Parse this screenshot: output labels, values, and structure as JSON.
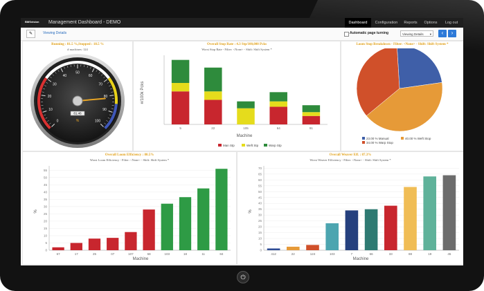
{
  "navbar": {
    "brand": "BMSvision",
    "title": "Management Dashboard - DEMO",
    "tabs": [
      "Dashboard",
      "Configuration",
      "Reports",
      "Options",
      "Log out"
    ],
    "active_tab": "Dashboard"
  },
  "toolbar": {
    "viewing_details_link": "Viewing Details",
    "auto_page_label": "Automatic page turning",
    "viewing_select": "Viewing Details",
    "prev": "‹",
    "next": "›"
  },
  "gauge_panel": {
    "title": "Running : 81.5 %,Stopped : 18.5 %",
    "machines": "# machines: 124",
    "ticks": [
      "0",
      "10",
      "20",
      "30",
      "40",
      "50",
      "60",
      "70",
      "80",
      "90",
      "100"
    ],
    "unit": "%",
    "value_label": "81.46"
  },
  "stop_rate_panel": {
    "title": "Overall Stop Rate : 4.3 Stp/100,000 Pcks",
    "subtitle": "Worst Stop Rate  -  Filter: <None> - Shift: Shift System *",
    "ylabel": "#/100k Pcks",
    "xlabel": "Machine",
    "legend": [
      "Man Stp",
      "Weft Stp",
      "Warp Stp"
    ]
  },
  "pie_panel": {
    "title": "Loom Stop Breakdown  -  Filter: <None> - Shift: Shift System *",
    "legend": [
      "23.00 % Manual",
      "40.00 % Weft Stop",
      "34.00 % Warp Stop"
    ]
  },
  "loom_eff_panel": {
    "title": "Overall Loom Efficiency : 80.5%",
    "subtitle": "Worst Loom Efficiency  -  Filter: <None> - Shift: Shift System *",
    "ylabel": "%",
    "xlabel": "Machine"
  },
  "weaver_eff_panel": {
    "title": "Overall Weaver Eff. : 87.3%",
    "subtitle": "Worst Weaver Efficiency  -  Filter: <None> - Shift: Shift System *",
    "ylabel": "%",
    "xlabel": "Machine"
  },
  "chart_data": [
    {
      "type": "gauge",
      "title": "Running : 81.5 %,Stopped : 18.5 %",
      "value": 81.46,
      "min": 0,
      "max": 100,
      "bands": [
        {
          "from": 0,
          "to": 30,
          "color": "#d93131"
        },
        {
          "from": 30,
          "to": 70,
          "color": "#ffffff"
        },
        {
          "from": 70,
          "to": 85,
          "color": "#e9d21a"
        },
        {
          "from": 85,
          "to": 100,
          "color": "#3f57b8"
        }
      ]
    },
    {
      "type": "bar",
      "stacked": true,
      "title": "Overall Stop Rate : 4.3 Stp/100,000 Pcks",
      "categories": [
        "5",
        "22",
        "105",
        "64",
        "91"
      ],
      "series": [
        {
          "name": "Man Stp",
          "color": "#c8262e",
          "values": [
            4.3,
            3.2,
            0,
            2.3,
            1.1
          ]
        },
        {
          "name": "Weft Stp",
          "color": "#e5dc1c",
          "values": [
            1.1,
            1.1,
            2.1,
            0.7,
            0.5
          ]
        },
        {
          "name": "Warp Stp",
          "color": "#2e8b3c",
          "values": [
            3.0,
            3.1,
            0.9,
            1.2,
            0.9
          ]
        }
      ],
      "xlabel": "Machine",
      "ylabel": "#/100k Pcks",
      "ylim": [
        0,
        9
      ],
      "legend_position": "bottom"
    },
    {
      "type": "pie",
      "title": "Loom Stop Breakdown  -  Filter: <None> - Shift: Shift System *",
      "slices": [
        {
          "label": "23.00 % Manual",
          "value": 23,
          "color": "#3f5fa8"
        },
        {
          "label": "40.00 % Weft Stop",
          "value": 40,
          "color": "#e69a38"
        },
        {
          "label": "34.00 % Warp Stop",
          "value": 34,
          "color": "#d0502a"
        }
      ],
      "legend_position": "bottom"
    },
    {
      "type": "bar",
      "title": "Overall Loom Efficiency : 80.5%",
      "categories": [
        "67",
        "17",
        "25",
        "07",
        "107",
        "68",
        "103",
        "18",
        "11",
        "84"
      ],
      "values": [
        2,
        5,
        8,
        8.5,
        12.5,
        28,
        32,
        36.5,
        42.5,
        56
      ],
      "colors": [
        "#c8262e",
        "#c8262e",
        "#c8262e",
        "#c8262e",
        "#c8262e",
        "#c8262e",
        "#2e9b45",
        "#2e9b45",
        "#2e9b45",
        "#2e9b45"
      ],
      "xlabel": "Machine",
      "ylabel": "%",
      "yticks": [
        0,
        5,
        10,
        15,
        20,
        25,
        30,
        35,
        40,
        45,
        50,
        55
      ],
      "ylim": [
        0,
        58
      ]
    },
    {
      "type": "bar",
      "title": "Overall Weaver Eff. : 87.3%",
      "categories": [
        "412",
        "22",
        "124",
        "103",
        "7",
        "66",
        "33",
        "88",
        "19",
        "45"
      ],
      "values": [
        1.5,
        3,
        4.5,
        23,
        34,
        35,
        38,
        54,
        63,
        64
      ],
      "colors": [
        "#2f4d96",
        "#e69a38",
        "#d0502a",
        "#4ca5b0",
        "#25407e",
        "#2e7a72",
        "#c8262e",
        "#f0bd55",
        "#5fb29a",
        "#6c6c6c"
      ],
      "xlabel": "Machine",
      "ylabel": "%",
      "yticks": [
        0,
        5,
        10,
        15,
        20,
        25,
        30,
        35,
        40,
        45,
        50,
        55,
        60,
        65,
        70
      ],
      "ylim": [
        0,
        72
      ]
    }
  ]
}
